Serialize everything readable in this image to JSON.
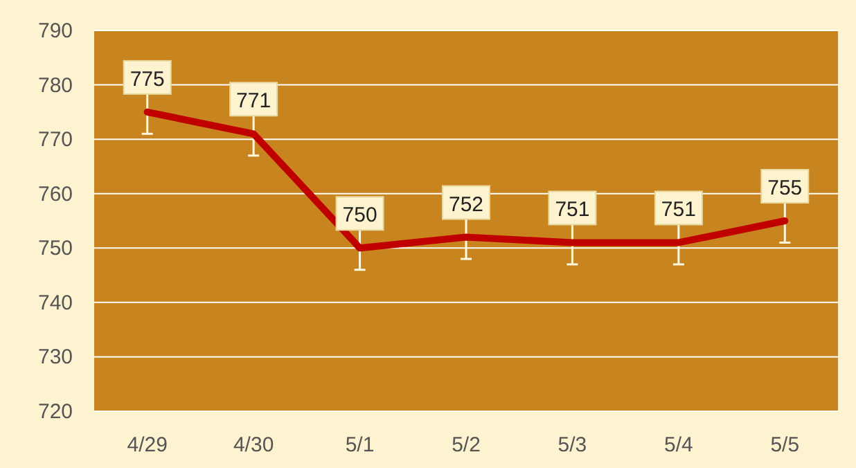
{
  "chart_data": {
    "type": "line",
    "categories": [
      "4/29",
      "4/30",
      "5/1",
      "5/2",
      "5/3",
      "5/4",
      "5/5"
    ],
    "series": [
      {
        "color": "#c00000",
        "values": [
          775,
          771,
          750,
          752,
          751,
          751,
          755
        ],
        "errors": [
          4,
          4,
          4,
          4,
          4,
          4,
          4
        ]
      }
    ],
    "ylim": [
      720,
      790
    ],
    "yticks": [
      720,
      730,
      740,
      750,
      760,
      770,
      780,
      790
    ],
    "grid": "y",
    "data_labels": true,
    "marker": "none",
    "line_style": "solid"
  }
}
